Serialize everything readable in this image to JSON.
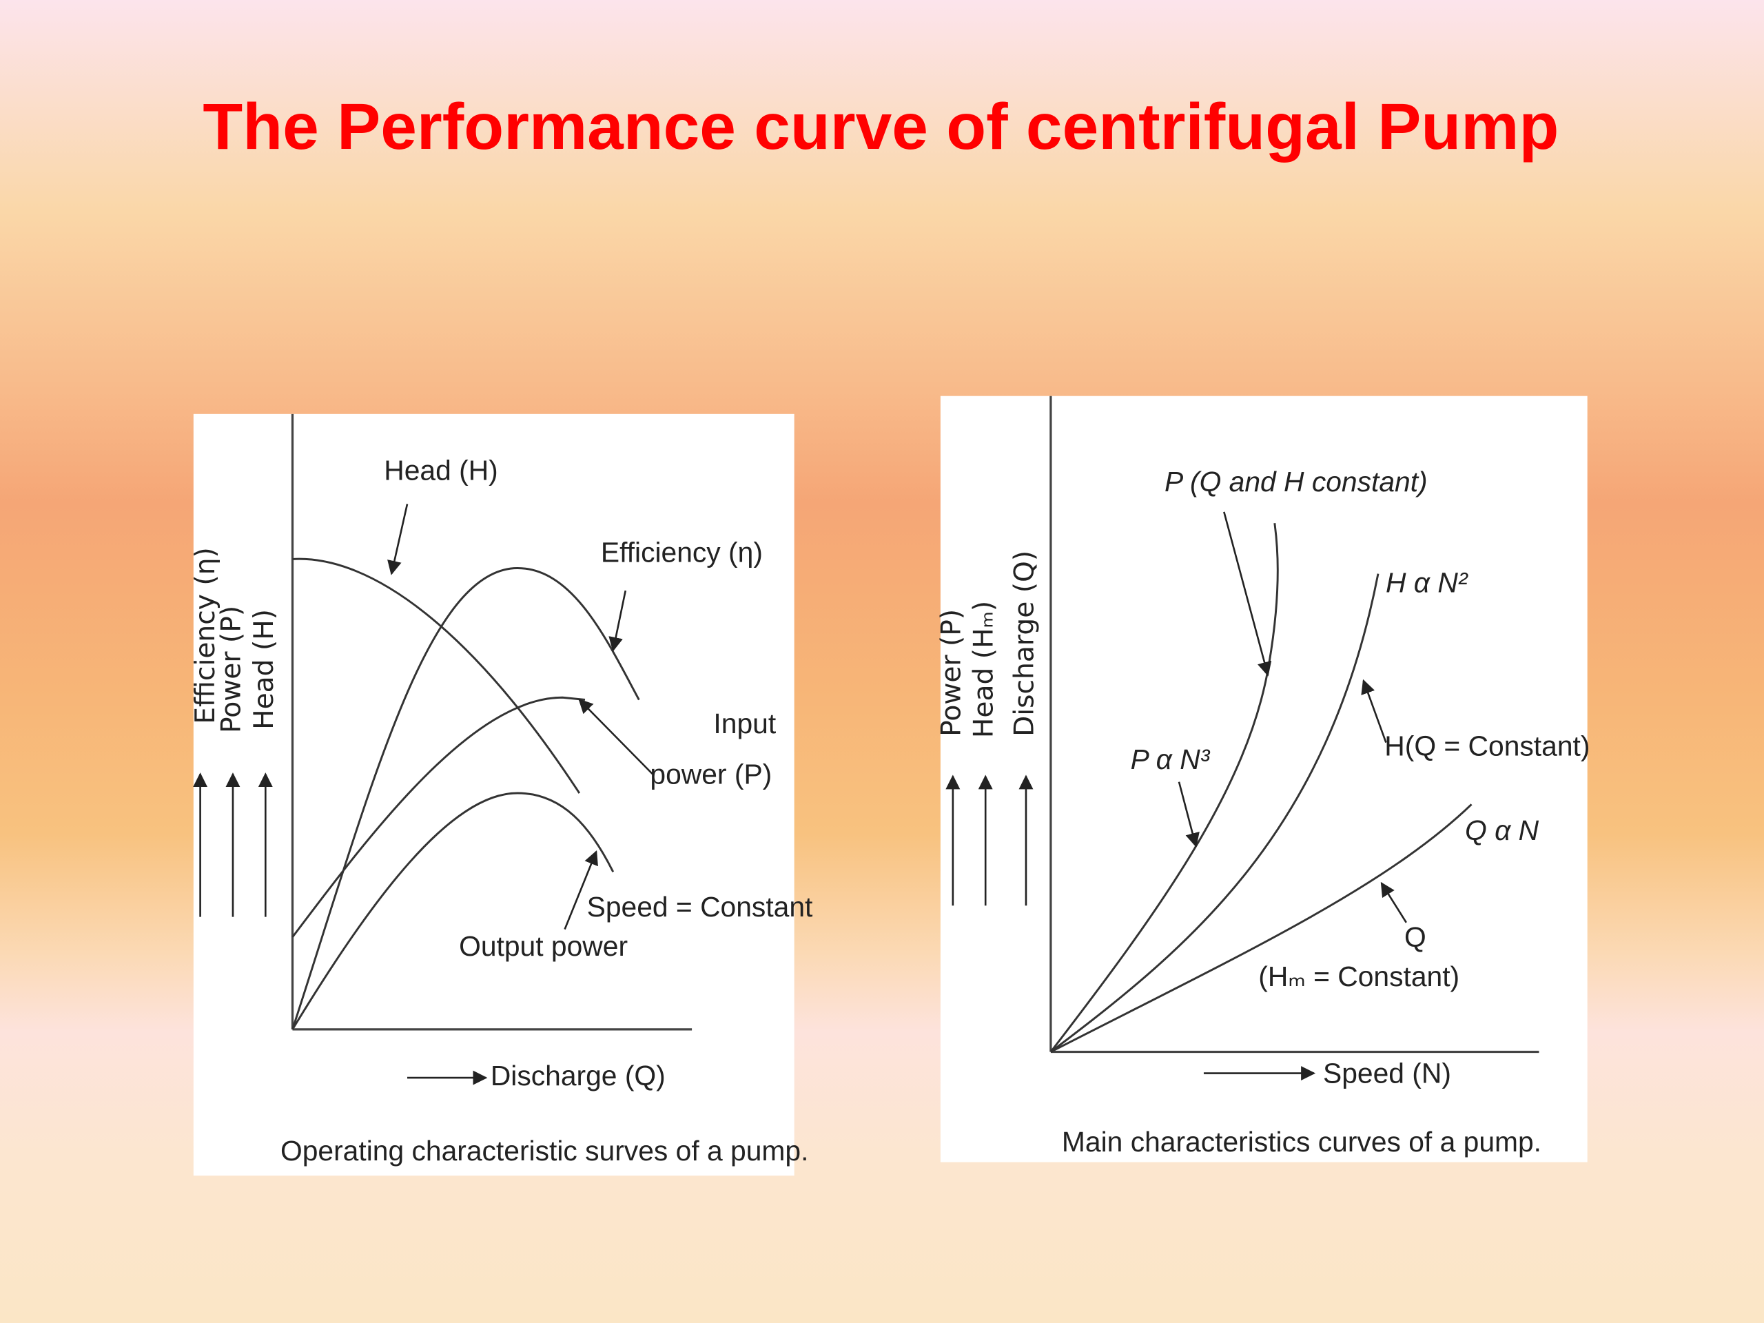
{
  "title": "The Performance curve of centrifugal Pump",
  "diagrams": [
    {
      "axis_labels": [
        "Efficiency (η)",
        "Power (P)",
        "Head (H)"
      ],
      "x_axis_label": "Discharge (Q)",
      "curve_labels": [
        "Head (H)",
        "Efficiency (η)",
        "Input",
        "power (P)",
        "Speed = Constant",
        "Output power"
      ],
      "caption": "Operating characteristic surves of a pump."
    },
    {
      "axis_labels": [
        "Power (P)",
        "Head (Hₘ)",
        "Discharge (Q)"
      ],
      "x_axis_label": "Speed (N)",
      "curve_labels": [
        "P (Q and H constant)",
        "H α N²",
        "P α N³",
        "H(Q = Constant)",
        "Q α N",
        "Q",
        "(Hₘ = Constant)"
      ],
      "caption": "Main characteristics curves of a pump."
    }
  ]
}
